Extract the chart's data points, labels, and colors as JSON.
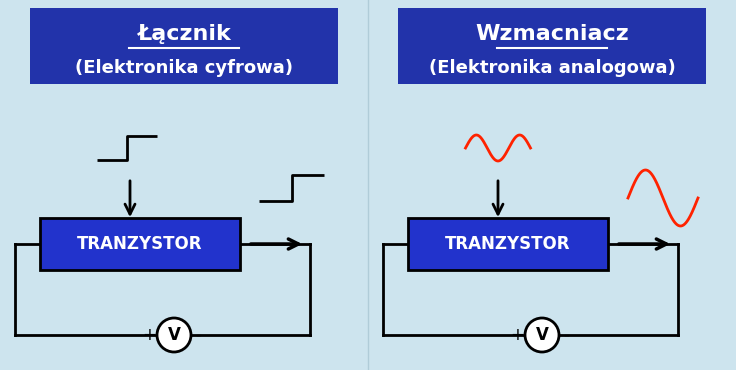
{
  "bg_color": "#cde4ee",
  "box_color": "#2233cc",
  "box_text": "TRANZYSTOR",
  "box_text_color": "white",
  "title1_line1": "Łącznik",
  "title1_line2": "(Elektronika cyfrowa)",
  "title2_line1": "Wzmacniacz",
  "title2_line2": "(Elektronika analogowa)",
  "title_bg": "#2233aa",
  "title_text_color": "white",
  "circuit_color": "black",
  "signal_color_digital": "black",
  "signal_color_analog": "#ff2200",
  "arrow_color": "black",
  "fig_w": 7.36,
  "fig_h": 3.7,
  "dpi": 100
}
